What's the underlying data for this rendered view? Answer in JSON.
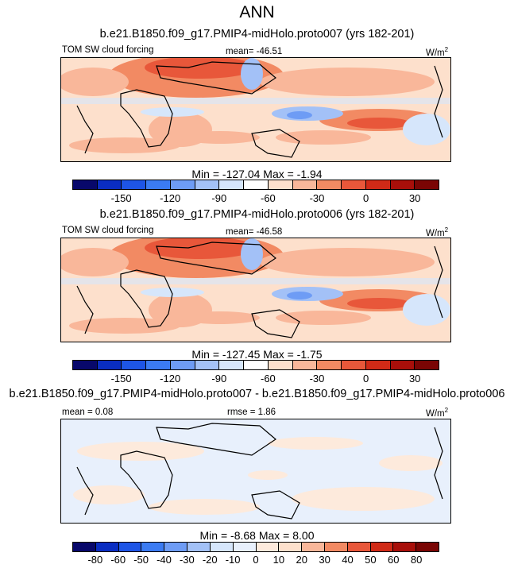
{
  "title": "ANN",
  "colors": {
    "abs_scale": [
      "#08086b",
      "#0a2dc2",
      "#1e55e6",
      "#3b7bf2",
      "#6e9cf5",
      "#a3c1f7",
      "#d6e6fb",
      "#ffffff",
      "#fde0cc",
      "#f9b79a",
      "#f28a63",
      "#e8573a",
      "#d02a17",
      "#a80f0a",
      "#7a0504"
    ],
    "diff_scale": [
      "#08086b",
      "#0a2dc2",
      "#1e55e6",
      "#3b7bf2",
      "#6e9cf5",
      "#a3c1f7",
      "#d6e6fb",
      "#e8f0fc",
      "#fdeadc",
      "#fde0cc",
      "#f9b79a",
      "#f28a63",
      "#e8573a",
      "#d02a17",
      "#a80f0a",
      "#7a0504"
    ]
  },
  "panels": [
    {
      "case_title": "b.e21.B1850.f09_g17.PMIP4-midHolo.proto007 (yrs 182-201)",
      "variable": "TOM SW cloud forcing",
      "mean_label": "mean= -46.51",
      "units": "W/m",
      "units_sup": "2",
      "minmax": "Min = -127.04 Max =  -1.94",
      "ticks": [
        "-150",
        "-120",
        "-90",
        "-60",
        "-30",
        "0",
        "30"
      ]
    },
    {
      "case_title": "b.e21.B1850.f09_g17.PMIP4-midHolo.proto006 (yrs 182-201)",
      "variable": "TOM SW cloud forcing",
      "mean_label": "mean= -46.58",
      "units": "W/m",
      "units_sup": "2",
      "minmax": "Min = -127.45 Max =  -1.75",
      "ticks": [
        "-150",
        "-120",
        "-90",
        "-60",
        "-30",
        "0",
        "30"
      ]
    },
    {
      "case_title": "b.e21.B1850.f09_g17.PMIP4-midHolo.proto007 - b.e21.B1850.f09_g17.PMIP4-midHolo.proto006",
      "mean_label": "mean =  0.08",
      "rmse_label": "rmse =  1.86",
      "units": "W/m",
      "units_sup": "2",
      "minmax": "Min =  -8.68 Max =   8.00",
      "ticks": [
        "-80",
        "-60",
        "-50",
        "-40",
        "-30",
        "-20",
        "-10",
        "0",
        "10",
        "20",
        "30",
        "40",
        "50",
        "60",
        "80"
      ]
    }
  ]
}
